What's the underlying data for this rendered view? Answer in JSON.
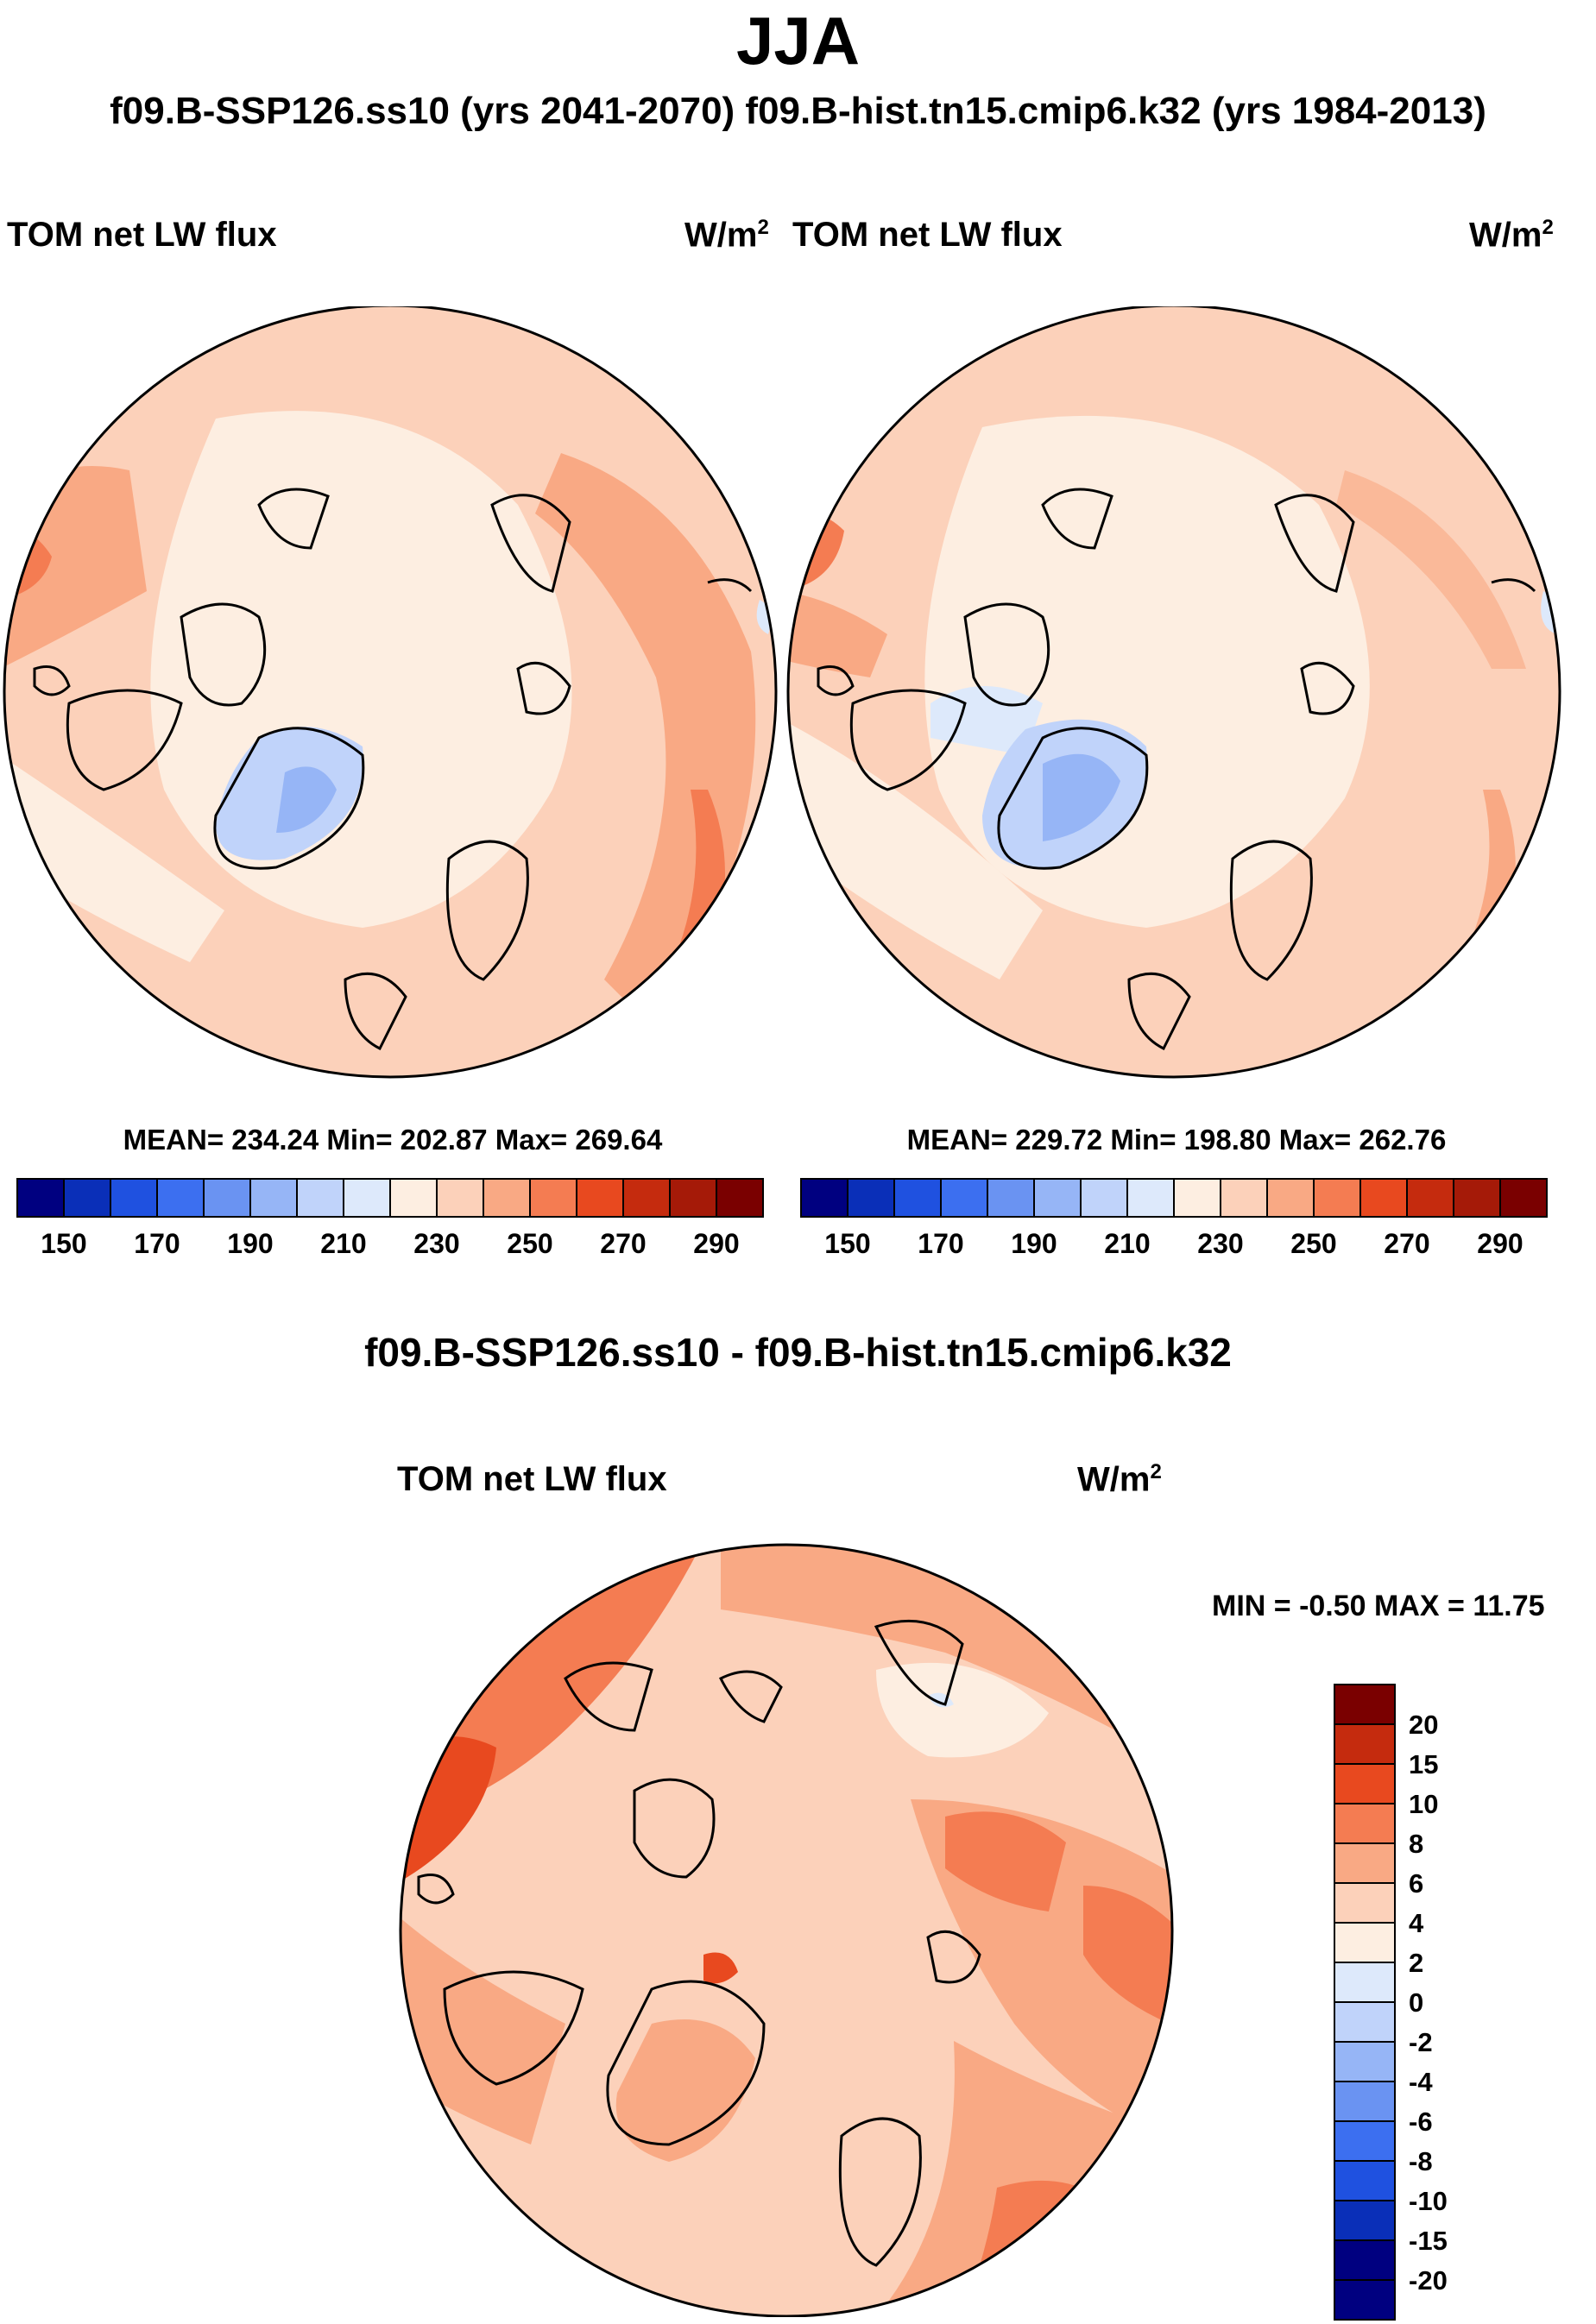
{
  "header": {
    "title": "JJA",
    "subtitle": "f09.B-SSP126.ss10 (yrs 2041-2070)  f09.B-hist.tn15.cmip6.k32 (yrs 1984-2013)"
  },
  "colors": {
    "abs_levels": [
      "#000080",
      "#0a2fb8",
      "#1f51e0",
      "#3c6ff0",
      "#6a93f2",
      "#96b5f6",
      "#c0d3fa",
      "#dde9fb",
      "#fdeee1",
      "#fcd1ba",
      "#f9a984",
      "#f47c52",
      "#e8491f",
      "#c52b0e",
      "#a51a08",
      "#7a0000"
    ],
    "diff_levels": [
      "#000080",
      "#0a2fb8",
      "#1f51e0",
      "#3c6ff0",
      "#6a93f2",
      "#96b5f6",
      "#c0d3fa",
      "#dde9fb",
      "#fdeee1",
      "#fcd1ba",
      "#f9a984",
      "#f47c52",
      "#e8491f",
      "#c52b0e",
      "#7a0000"
    ]
  },
  "panels": [
    {
      "left_label": "TOM net LW flux",
      "right_label": "W/m",
      "right_label_sup": "2",
      "stats": "MEAN= 234.24  Min= 202.87  Max= 269.64"
    },
    {
      "left_label": "TOM net LW flux",
      "right_label": "W/m",
      "right_label_sup": "2",
      "stats": "MEAN= 229.72  Min= 198.80  Max= 262.76"
    }
  ],
  "diff_panel": {
    "title": "f09.B-SSP126.ss10 - f09.B-hist.tn15.cmip6.k32",
    "left_label": "TOM net LW flux",
    "right_label": "W/m",
    "right_label_sup": "2",
    "minmax": "MIN =  -0.50 MAX =  11.75"
  },
  "chart_data": [
    {
      "type": "heatmap",
      "projection": "north-polar-stereographic",
      "variable": "TOM net LW flux",
      "units": "W/m2",
      "case": "f09.B-SSP126.ss10 (yrs 2041-2070)",
      "mean": 234.24,
      "min": 202.87,
      "max": 269.64,
      "colorbar_levels": [
        150,
        160,
        170,
        180,
        190,
        200,
        210,
        220,
        230,
        240,
        250,
        260,
        270,
        280,
        290
      ],
      "colorbar_tick_labels": [
        "150",
        "170",
        "190",
        "210",
        "230",
        "250",
        "270",
        "290"
      ]
    },
    {
      "type": "heatmap",
      "projection": "north-polar-stereographic",
      "variable": "TOM net LW flux",
      "units": "W/m2",
      "case": "f09.B-hist.tn15.cmip6.k32 (yrs 1984-2013)",
      "mean": 229.72,
      "min": 198.8,
      "max": 262.76,
      "colorbar_levels": [
        150,
        160,
        170,
        180,
        190,
        200,
        210,
        220,
        230,
        240,
        250,
        260,
        270,
        280,
        290
      ],
      "colorbar_tick_labels": [
        "150",
        "170",
        "190",
        "210",
        "230",
        "250",
        "270",
        "290"
      ]
    },
    {
      "type": "heatmap",
      "projection": "north-polar-stereographic",
      "variable": "TOM net LW flux",
      "units": "W/m2",
      "case": "f09.B-SSP126.ss10 - f09.B-hist.tn15.cmip6.k32",
      "min": -0.5,
      "max": 11.75,
      "colorbar_levels": [
        -20,
        -15,
        -10,
        -8,
        -6,
        -4,
        -2,
        0,
        2,
        4,
        6,
        8,
        10,
        15,
        20
      ],
      "colorbar_tick_labels": [
        "20",
        "15",
        "10",
        "8",
        "6",
        "4",
        "2",
        "0",
        "-2",
        "-4",
        "-6",
        "-8",
        "-10",
        "-15",
        "-20"
      ]
    }
  ]
}
